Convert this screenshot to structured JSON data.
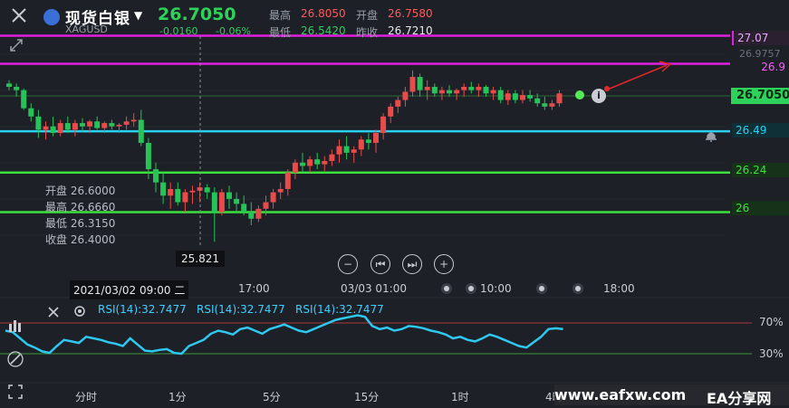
{
  "header": {
    "title": "现货白银",
    "symbol": "XAGUSD",
    "price": "26.7050",
    "change": "-0.0160",
    "change_pct": "-0.06%",
    "high_label": "最高",
    "high": "26.8050",
    "open_label": "开盘",
    "open": "26.7580",
    "low_label": "最低",
    "low": "26.5420",
    "prev_label": "昨收",
    "prev": "26.7210"
  },
  "levels": {
    "l1": "27.07",
    "l2": "26.9",
    "l3": "26.49",
    "l4": "26.24",
    "l5": "26",
    "faint_top": "26.9757",
    "current": "26.7050"
  },
  "crosshair_ohlc": {
    "open": "开盘 26.6000",
    "high": "最高 26.6660",
    "low": "最低 26.3150",
    "close": "收盘 26.4000"
  },
  "crosshair_price": "25.821",
  "crosshair_time": "2021/03/02 09:00 二",
  "x_ticks": [
    "17:00",
    "03/03 01:00",
    "10:00",
    "18:00"
  ],
  "rsi": {
    "label1": "RSI(14):32.7477",
    "label2": "RSI(14):32.7477",
    "label3": "RSI(14):32.7477",
    "upper": "70%",
    "lower": "30%"
  },
  "timeframes": [
    "分时",
    "1分",
    "5分",
    "15分",
    "1时",
    "4时"
  ],
  "watermark": "www.eafxw.com",
  "watermark_brand": "EA分享网",
  "colors": {
    "magenta": "#e020e0",
    "cyan": "#2ad0f0",
    "green": "#3ce03c",
    "up": "#e94b4b",
    "down": "#27c35a",
    "rsi": "#2ec8f0"
  }
}
